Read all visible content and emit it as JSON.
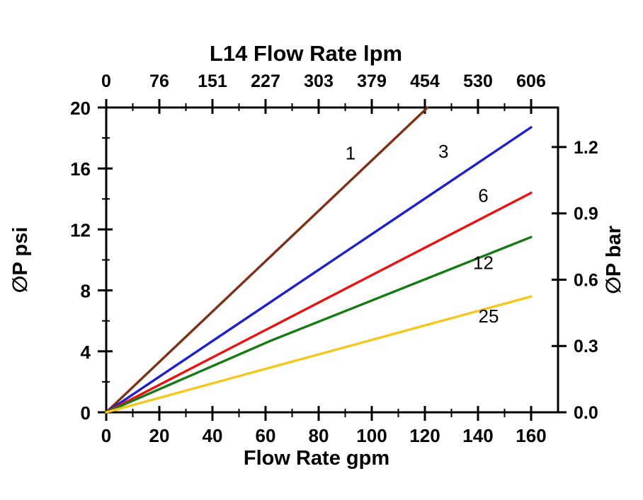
{
  "chart": {
    "background": "#ffffff",
    "frame_color": "#000000"
  },
  "chart_data": {
    "type": "line",
    "title": "L14  Flow Rate lpm",
    "axes": {
      "bottom": {
        "label": "Flow Rate gpm",
        "ticks": [
          0,
          20,
          40,
          60,
          80,
          100,
          120,
          140,
          160
        ],
        "range": [
          0,
          170
        ]
      },
      "top": {
        "label": "L14  Flow Rate lpm",
        "tick_labels": [
          "0",
          "76",
          "151",
          "227",
          "303",
          "379",
          "454",
          "530",
          "606"
        ],
        "tick_positions_gpm": [
          0,
          20,
          40,
          60,
          80,
          100,
          120,
          140,
          160
        ],
        "unit": "lpm"
      },
      "left": {
        "label": "∅P psi",
        "ticks": [
          0,
          4,
          8,
          12,
          16,
          20
        ],
        "range": [
          0,
          20
        ]
      },
      "right": {
        "label": "∅P bar",
        "tick_labels": [
          "0.0",
          "0.3",
          "0.6",
          "0.9",
          "1.2"
        ],
        "psi_per_bar": 14.5038
      }
    },
    "series": [
      {
        "name": "1",
        "color": "#7E3117",
        "points_gpm_psi": [
          [
            0,
            0
          ],
          [
            121,
            20
          ]
        ],
        "label": {
          "text": "1",
          "x_gpm": 92,
          "y_psi": 16.6
        }
      },
      {
        "name": "3",
        "color": "#1F1FCC",
        "points_gpm_psi": [
          [
            0,
            0
          ],
          [
            160,
            18.7
          ]
        ],
        "label": {
          "text": "3",
          "x_gpm": 127,
          "y_psi": 16.7
        }
      },
      {
        "name": "6",
        "color": "#E81414",
        "points_gpm_psi": [
          [
            0,
            0
          ],
          [
            160,
            14.4
          ]
        ],
        "label": {
          "text": "6",
          "x_gpm": 142,
          "y_psi": 13.8
        }
      },
      {
        "name": "12",
        "color": "#157A15",
        "points_gpm_psi": [
          [
            0,
            0
          ],
          [
            62,
            4.7
          ],
          [
            160,
            11.5
          ]
        ],
        "label": {
          "text": "12",
          "x_gpm": 142,
          "y_psi": 9.4
        }
      },
      {
        "name": "25",
        "color": "#F5C61C",
        "points_gpm_psi": [
          [
            0,
            0
          ],
          [
            160,
            7.6
          ]
        ],
        "label": {
          "text": "25",
          "x_gpm": 144,
          "y_psi": 5.9
        }
      }
    ]
  }
}
